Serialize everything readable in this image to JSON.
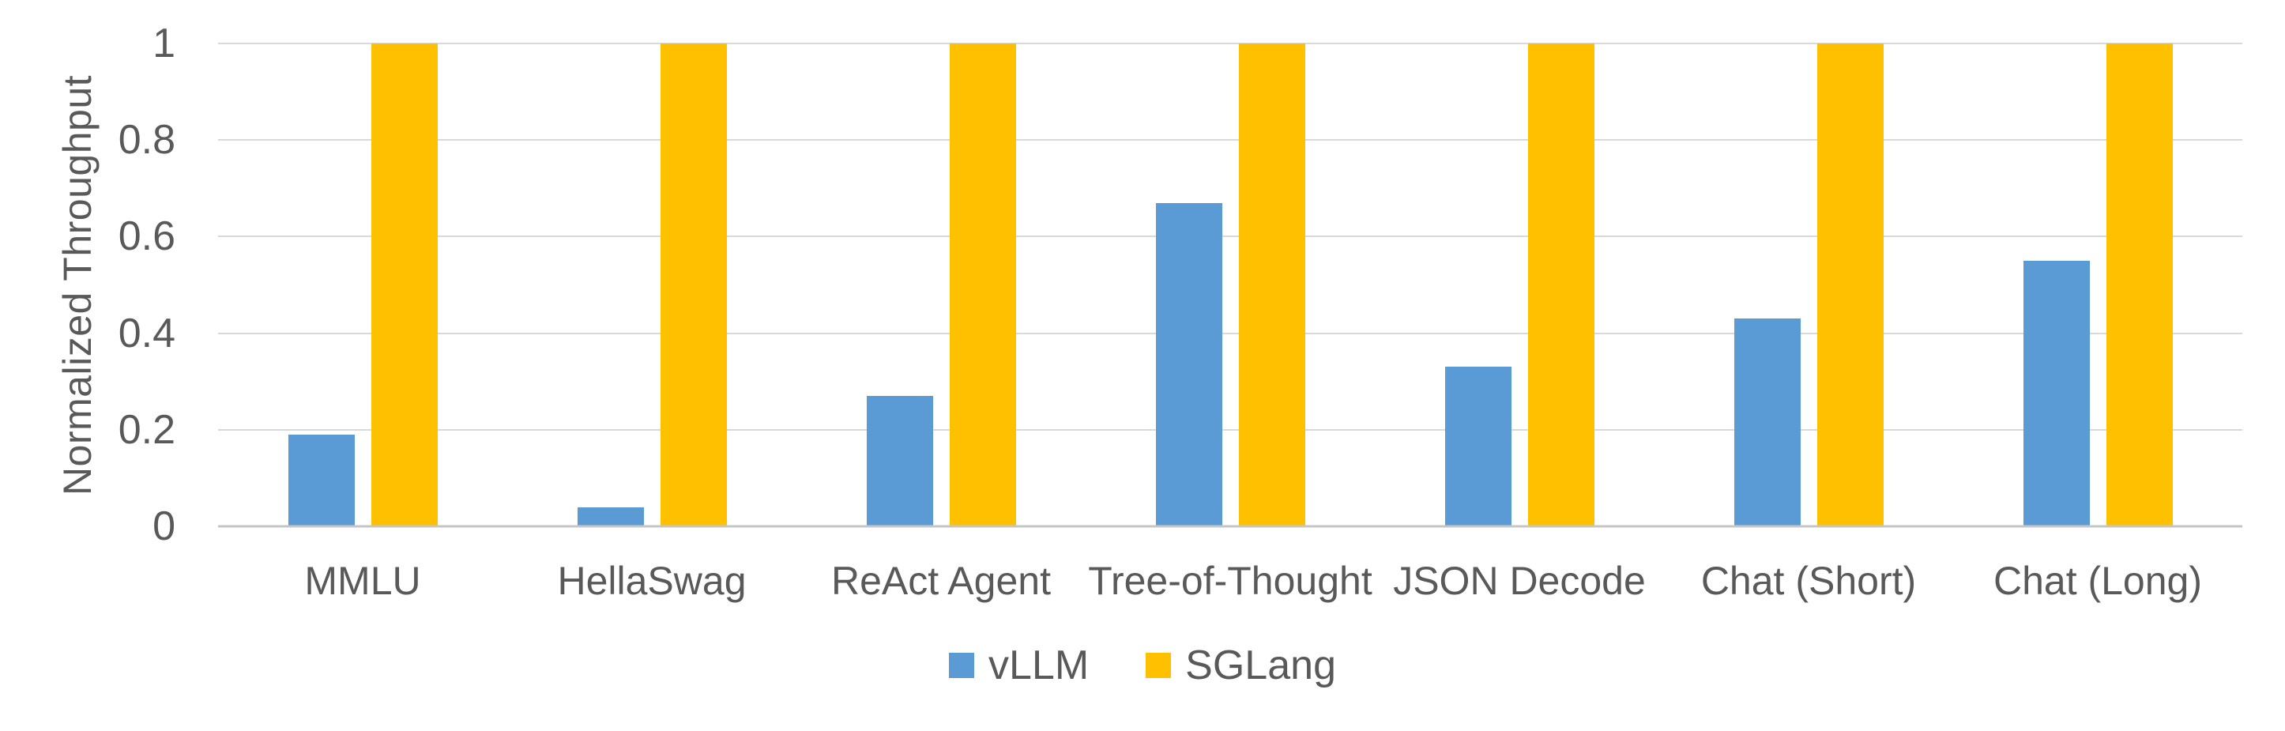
{
  "chart_data": {
    "type": "bar",
    "title": "",
    "ylabel": "Normalized Throughput",
    "xlabel": "",
    "categories": [
      "MMLU",
      "HellaSwag",
      "ReAct Agent",
      "Tree-of-Thought",
      "JSON Decode",
      "Chat (Short)",
      "Chat (Long)"
    ],
    "series": [
      {
        "name": "vLLM",
        "color": "#5B9BD5",
        "values": [
          0.19,
          0.04,
          0.27,
          0.67,
          0.33,
          0.43,
          0.55
        ]
      },
      {
        "name": "SGLang",
        "color": "#FFC000",
        "values": [
          1,
          1,
          1,
          1,
          1,
          1,
          1
        ]
      }
    ],
    "ylim": [
      0,
      1
    ],
    "yticks": [
      0,
      0.2,
      0.4,
      0.6,
      0.8,
      1
    ],
    "ytick_labels": [
      "0",
      "0.2",
      "0.4",
      "0.6",
      "0.8",
      "1"
    ],
    "grid": true,
    "legend_position": "bottom"
  },
  "colors": {
    "text": "#595959",
    "gridline": "#D9D9D9",
    "axis_line": "#C6C6C6",
    "background": "#FFFFFF"
  }
}
